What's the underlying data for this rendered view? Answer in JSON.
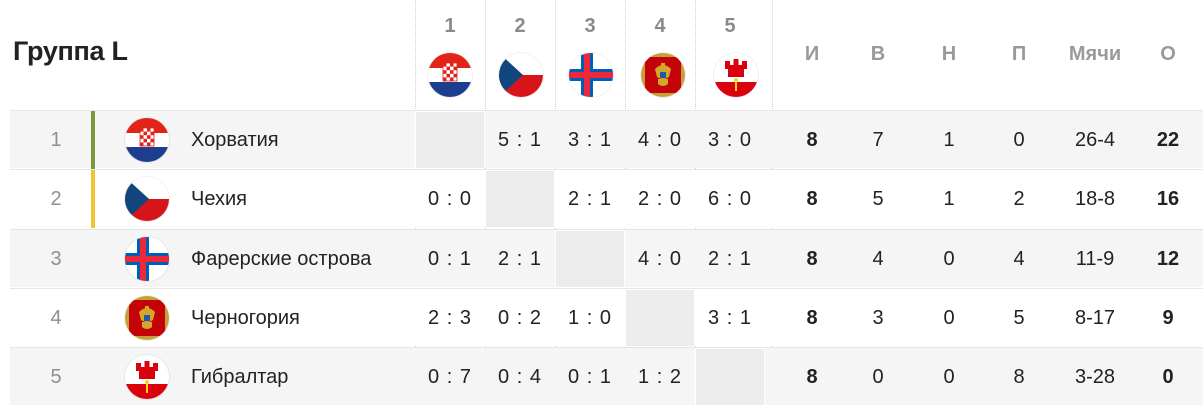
{
  "title": "Группа L",
  "columns": [
    "1",
    "2",
    "3",
    "4",
    "5"
  ],
  "column_flags": [
    "croatia-flag-icon",
    "czech-flag-icon",
    "faroe-flag-icon",
    "montenegro-flag-icon",
    "gibraltar-flag-icon"
  ],
  "stat_headers": {
    "played": "И",
    "won": "В",
    "drawn": "Н",
    "lost": "П",
    "goals": "Мячи",
    "points": "О"
  },
  "colors": {
    "qualified": "#7a9a3a",
    "playoff": "#f2c530",
    "row_alt": "#f5f5f5",
    "self_cell": "#ececec"
  },
  "rows": [
    {
      "pos": "1",
      "team": "Хорватия",
      "flag": "croatia-flag-icon",
      "bar": "qualified",
      "results": [
        "",
        "5 : 1",
        "3 : 1",
        "4 : 0",
        "3 : 0"
      ],
      "played": "8",
      "won": "7",
      "drawn": "1",
      "lost": "0",
      "goals": "26-4",
      "points": "22"
    },
    {
      "pos": "2",
      "team": "Чехия",
      "flag": "czech-flag-icon",
      "bar": "playoff",
      "results": [
        "0 : 0",
        "",
        "2 : 1",
        "2 : 0",
        "6 : 0"
      ],
      "played": "8",
      "won": "5",
      "drawn": "1",
      "lost": "2",
      "goals": "18-8",
      "points": "16"
    },
    {
      "pos": "3",
      "team": "Фарерские острова",
      "flag": "faroe-flag-icon",
      "bar": "",
      "results": [
        "0 : 1",
        "2 : 1",
        "",
        "4 : 0",
        "2 : 1"
      ],
      "played": "8",
      "won": "4",
      "drawn": "0",
      "lost": "4",
      "goals": "11-9",
      "points": "12"
    },
    {
      "pos": "4",
      "team": "Черногория",
      "flag": "montenegro-flag-icon",
      "bar": "",
      "results": [
        "2 : 3",
        "0 : 2",
        "1 : 0",
        "",
        "3 : 1"
      ],
      "played": "8",
      "won": "3",
      "drawn": "0",
      "lost": "5",
      "goals": "8-17",
      "points": "9"
    },
    {
      "pos": "5",
      "team": "Гибралтар",
      "flag": "gibraltar-flag-icon",
      "bar": "",
      "results": [
        "0 : 7",
        "0 : 4",
        "0 : 1",
        "1 : 2",
        ""
      ],
      "played": "8",
      "won": "0",
      "drawn": "0",
      "lost": "8",
      "goals": "3-28",
      "points": "0"
    }
  ]
}
